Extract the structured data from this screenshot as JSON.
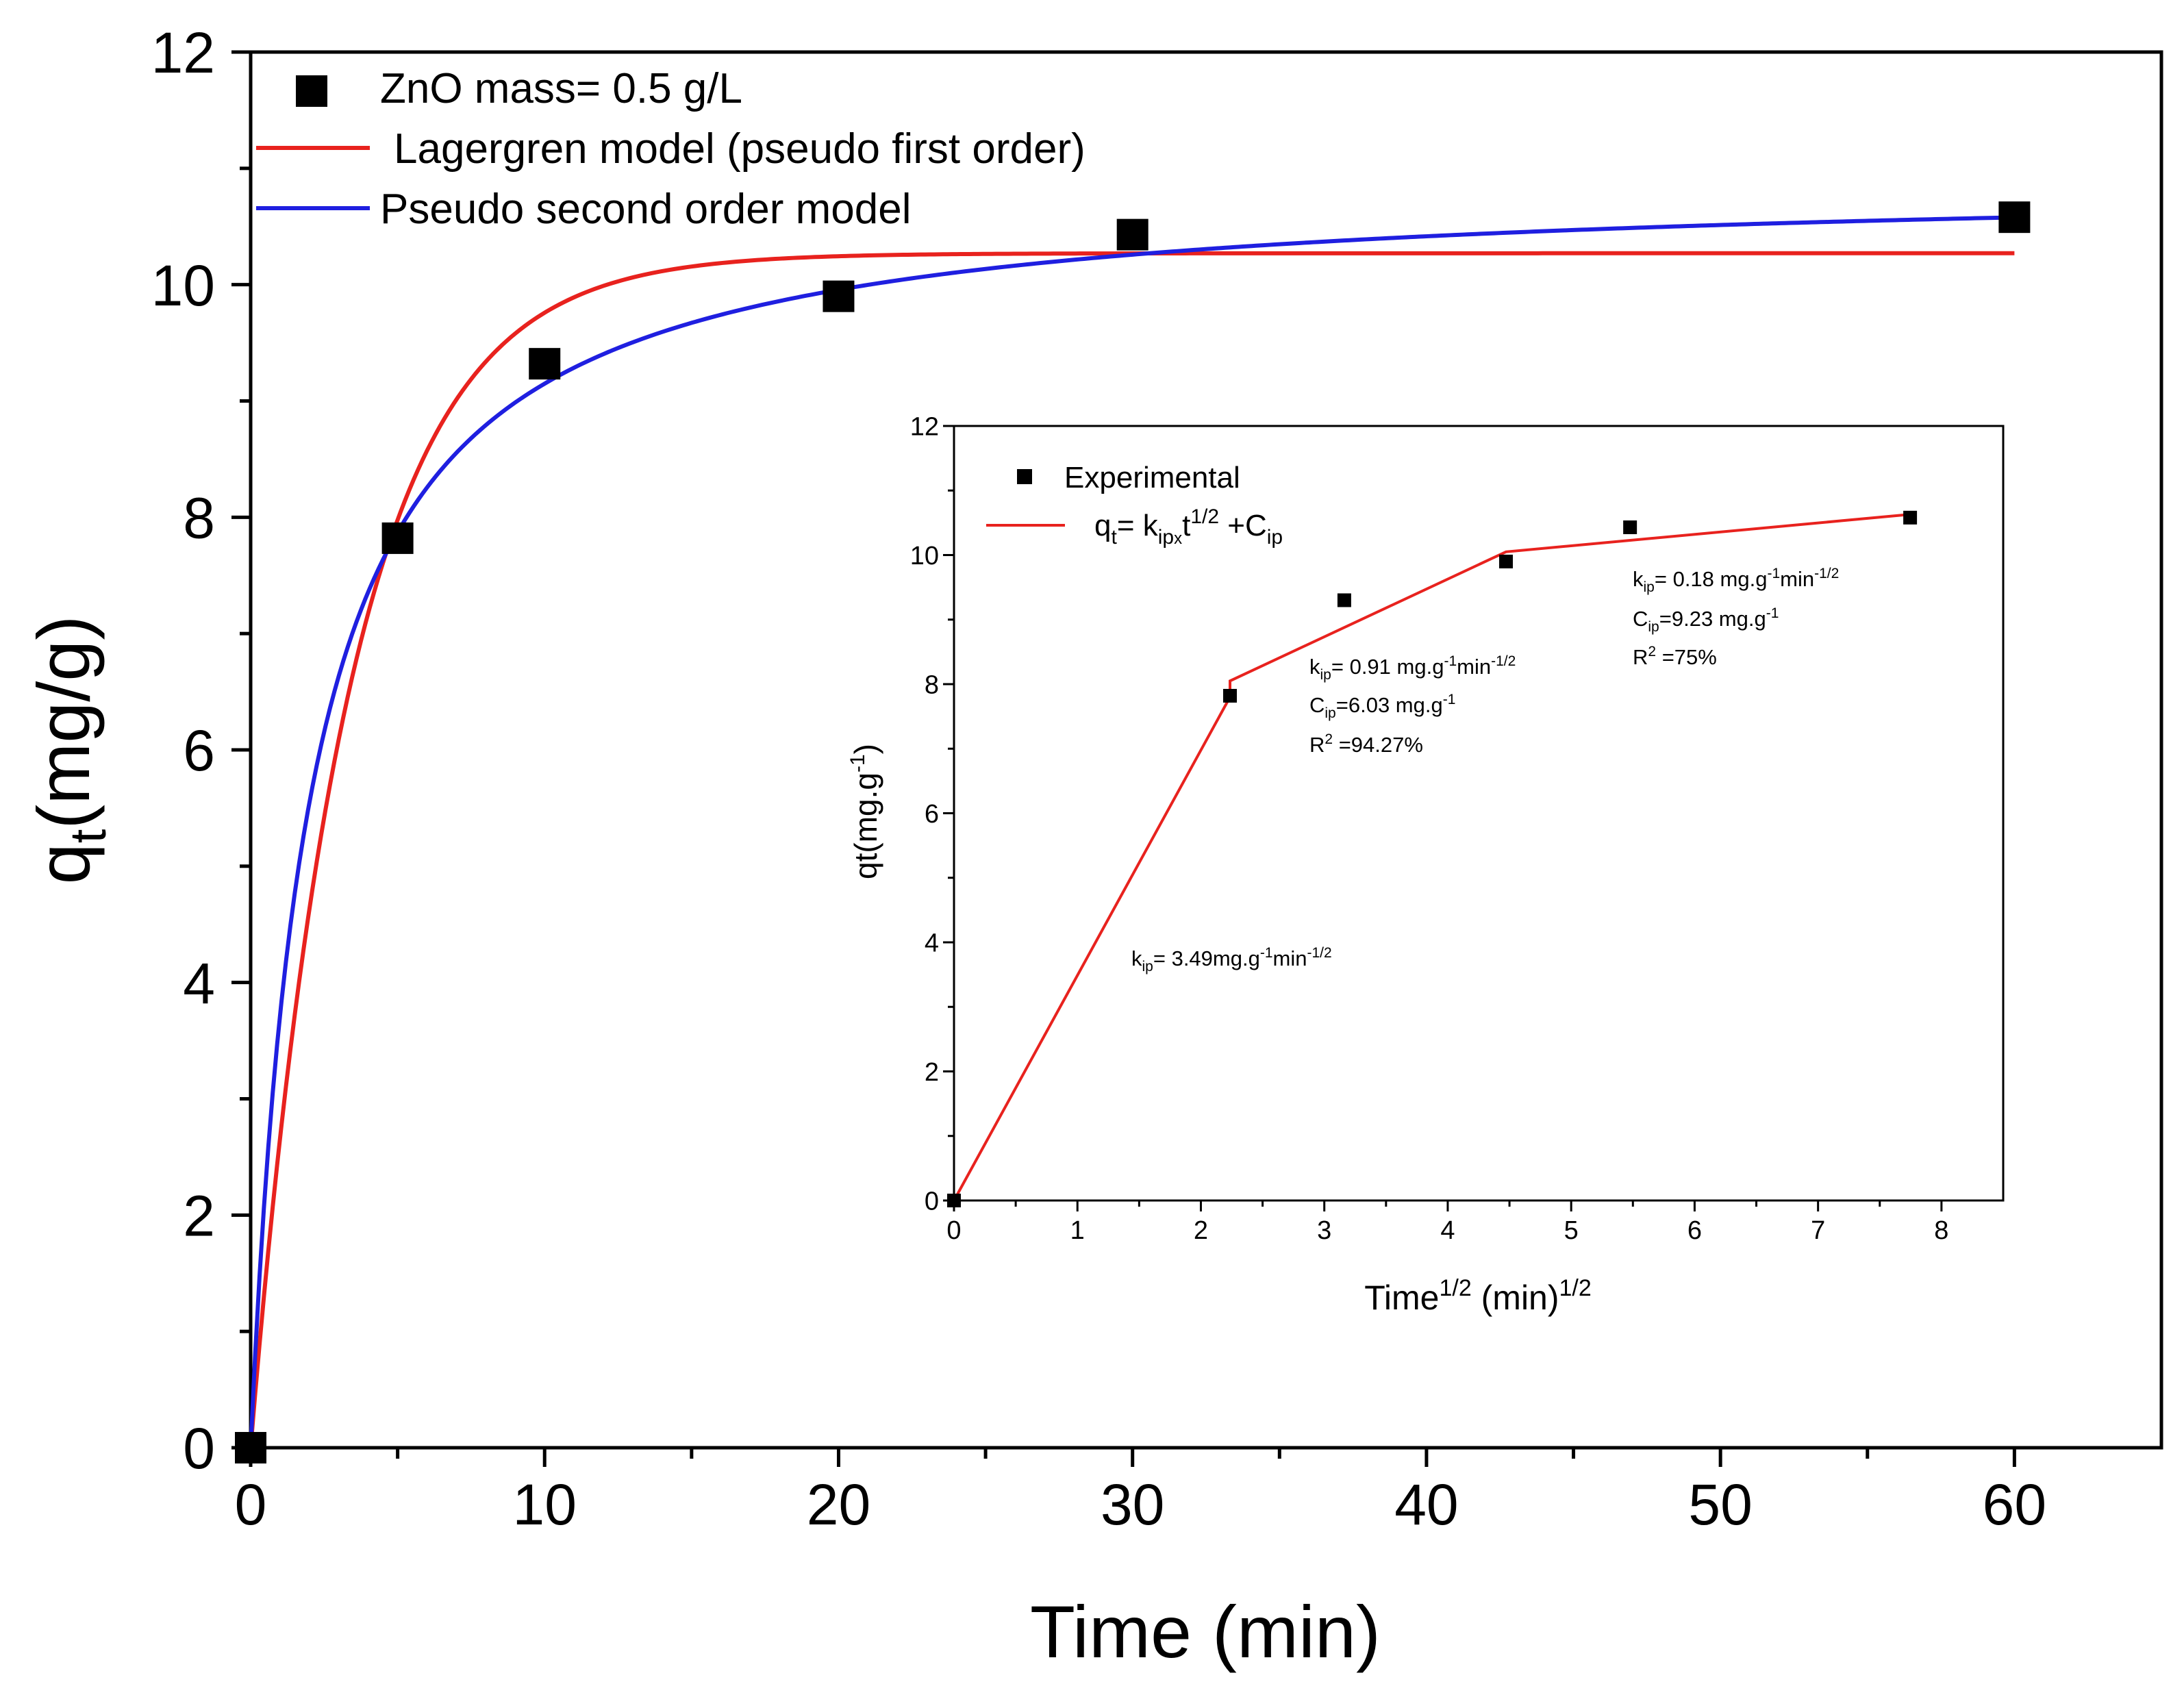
{
  "chart_data": [
    {
      "type": "scatter",
      "xlabel": "Time (min)",
      "ylabel": {
        "base": "q",
        "sub": "t",
        "rest": "(mg/g)"
      },
      "xlim": [
        0,
        65
      ],
      "ylim": [
        0,
        12
      ],
      "xticks": [
        0,
        10,
        20,
        30,
        40,
        50,
        60
      ],
      "yticks": [
        0,
        2,
        4,
        6,
        8,
        10,
        12
      ],
      "grid": false,
      "legend_position": "top-left",
      "experimental": {
        "name": "ZnO mass= 0.5 g/L",
        "color": "#000000",
        "x": [
          0,
          5,
          10,
          20,
          30,
          60
        ],
        "y": [
          0.0,
          7.82,
          9.32,
          9.9,
          10.43,
          10.58
        ]
      },
      "models": [
        {
          "name": "Lagergren model (pseudo first order)",
          "color": "#e8221e",
          "kind": "pseudo-first-order",
          "qe": 10.27,
          "k1": 0.3,
          "x_range": [
            0,
            60
          ]
        },
        {
          "name": "Pseudo second order model",
          "color": "#1f1fe0",
          "kind": "pseudo-second-order",
          "qe": 10.92,
          "k2": 0.0473,
          "x_range": [
            0,
            60
          ]
        }
      ]
    },
    {
      "type": "line",
      "role": "inset",
      "xlabel": {
        "base": "Time",
        "sup1": "1/2",
        "mid": " (min)",
        "sup2": "1/2"
      },
      "ylabel": {
        "base": "qt(mg.g",
        "sup": "-1",
        "rest": ")"
      },
      "xlim": [
        0,
        8.5
      ],
      "ylim": [
        0,
        12
      ],
      "xticks": [
        0,
        1,
        2,
        3,
        4,
        5,
        6,
        7,
        8
      ],
      "yticks": [
        0,
        2,
        4,
        6,
        8,
        10,
        12
      ],
      "grid": false,
      "experimental": {
        "name": "Experimental",
        "color": "#000000",
        "x": [
          0,
          2.236,
          3.162,
          4.472,
          5.477,
          7.746
        ],
        "y": [
          0.0,
          7.82,
          9.3,
          9.9,
          10.43,
          10.58
        ]
      },
      "fit": {
        "name_parts": [
          "q",
          "t",
          "= k",
          "ip",
          "x",
          "t",
          "1/2",
          " +C",
          "ip"
        ],
        "color": "#e8221e",
        "x": [
          0,
          2.236,
          2.236,
          4.472,
          7.746
        ],
        "y": [
          0.0,
          7.8,
          8.05,
          10.05,
          10.63
        ]
      },
      "annotations": [
        {
          "lines": [
            [
              "k",
              "ip",
              "= 0.18 mg.g",
              "-1",
              "min",
              "-1/2"
            ],
            [
              "C",
              "ip",
              "=9.23 mg.g",
              "-1"
            ],
            [
              "R",
              "2",
              " =75%"
            ]
          ]
        },
        {
          "lines": [
            [
              "k",
              "ip",
              "= 0.91 mg.g",
              "-1",
              "min",
              "-1/2"
            ],
            [
              "C",
              "ip",
              "=6.03 mg.g",
              "-1"
            ],
            [
              "R",
              "2",
              " =94.27%"
            ]
          ]
        },
        {
          "lines": [
            [
              "k",
              "ip",
              "= 3.49mg.g",
              "-1",
              "min",
              "-1/2"
            ]
          ]
        }
      ]
    }
  ]
}
